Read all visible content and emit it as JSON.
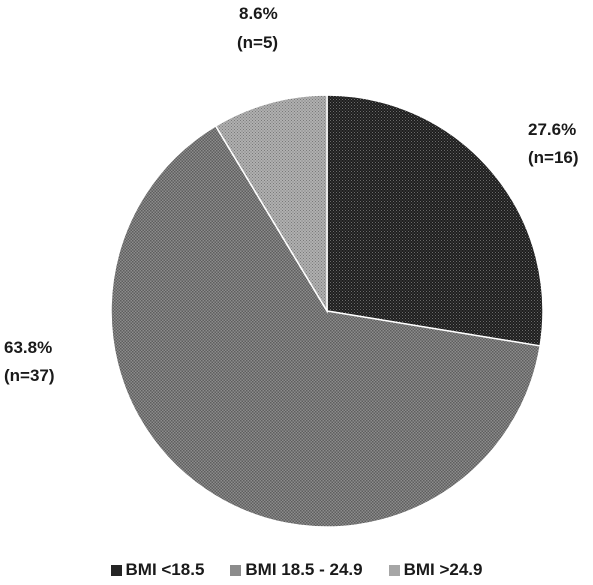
{
  "chart_data": {
    "type": "pie",
    "categories": [
      "BMI <18.5",
      "BMI 18.5 - 24.9",
      "BMI >24.9"
    ],
    "values": [
      16,
      37,
      5
    ],
    "percent_labels": [
      "27.6%",
      "63.8%",
      "8.6%"
    ],
    "count_labels": [
      "(n=16)",
      "(n=37)",
      "(n=5)"
    ],
    "colors": [
      "#252525",
      "#8c8c8c",
      "#a6a6a6"
    ],
    "start_angle_deg": 0,
    "direction": "clockwise",
    "legend_position": "bottom"
  }
}
